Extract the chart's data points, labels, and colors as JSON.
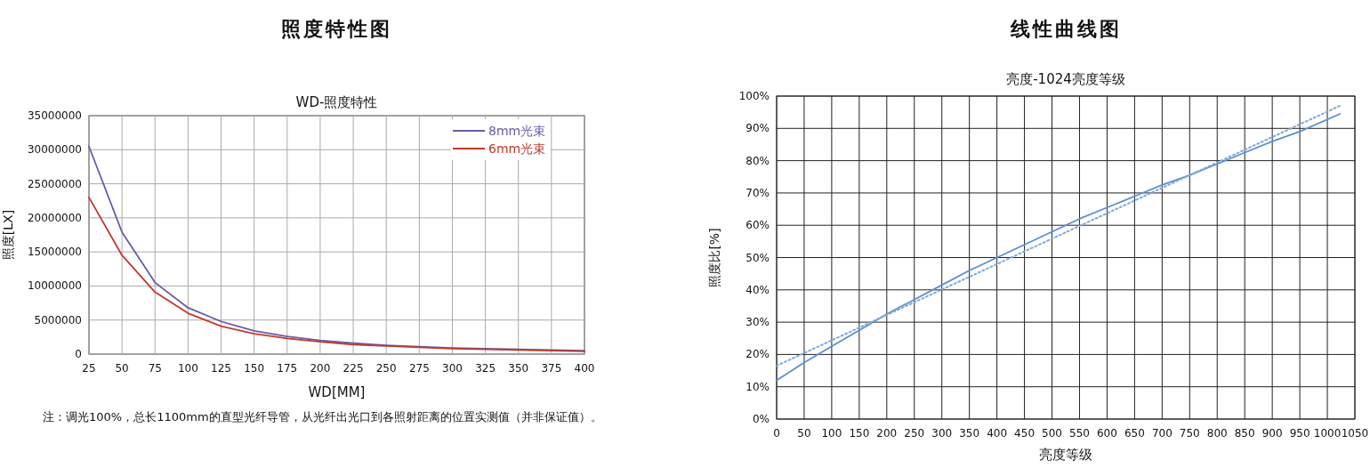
{
  "chart_data": [
    {
      "type": "line",
      "title": "照度特性图",
      "subtitle": "WD-照度特性",
      "xlabel": "WD[MM]",
      "ylabel": "照度[LX]",
      "x": [
        25,
        50,
        75,
        100,
        125,
        150,
        175,
        200,
        225,
        250,
        275,
        300,
        325,
        350,
        375,
        400
      ],
      "series": [
        {
          "name": "8mm光束",
          "color": "#6a5aa8",
          "values": [
            30500000,
            17900000,
            10500000,
            6800000,
            4800000,
            3400000,
            2600000,
            2000000,
            1600000,
            1300000,
            1100000,
            900000,
            800000,
            700000,
            600000,
            500000
          ]
        },
        {
          "name": "6mm光束",
          "color": "#c0392b",
          "values": [
            23000000,
            14500000,
            9100000,
            6000000,
            4100000,
            3000000,
            2300000,
            1800000,
            1400000,
            1200000,
            1000000,
            800000,
            700000,
            600000,
            500000,
            400000
          ]
        }
      ],
      "xlim": [
        25,
        400
      ],
      "xticks": [
        25,
        50,
        75,
        100,
        125,
        150,
        175,
        200,
        225,
        250,
        275,
        300,
        325,
        350,
        375,
        400
      ],
      "ylim": [
        0,
        35000000
      ],
      "yticks": [
        0,
        5000000,
        10000000,
        15000000,
        20000000,
        25000000,
        30000000,
        35000000
      ],
      "grid": true,
      "legend": "top right",
      "line_style": "solid",
      "annotations": [
        "注：调光100%，总长1100mm的直型光纤导管，从光纤出光口到各照射距离的位置实测值（并非保证值）。"
      ]
    },
    {
      "type": "line",
      "title": "线性曲线图",
      "subtitle": "亮度-1024亮度等级",
      "xlabel": "亮度等级",
      "ylabel": "照度比[%]",
      "series": [
        {
          "color": "#5b8fcf",
          "line_style": "solid",
          "x": [
            0,
            50,
            100,
            150,
            200,
            250,
            300,
            350,
            400,
            450,
            500,
            550,
            600,
            650,
            700,
            750,
            800,
            850,
            900,
            950,
            1023
          ],
          "values": [
            12,
            17.5,
            22.5,
            27.5,
            32.5,
            37,
            41.5,
            46,
            50,
            54,
            58,
            62,
            65.5,
            69,
            72.5,
            75.5,
            79,
            82.5,
            86,
            89,
            94.5
          ]
        },
        {
          "type": "line",
          "color": "#7fa9d6",
          "line_style": "dotted",
          "x": [
            0,
            1023
          ],
          "values": [
            16.5,
            97
          ]
        }
      ],
      "xlim": [
        0,
        1050
      ],
      "xticks": [
        0,
        50,
        100,
        150,
        200,
        250,
        300,
        350,
        400,
        450,
        500,
        550,
        600,
        650,
        700,
        750,
        800,
        850,
        900,
        950,
        1000,
        1050
      ],
      "ylim": [
        0,
        100
      ],
      "yticks": [
        {
          "value": 0,
          "label": "0%"
        },
        {
          "value": 10,
          "label": "10%"
        },
        {
          "value": 20,
          "label": "20%"
        },
        {
          "value": 30,
          "label": "30%"
        },
        {
          "value": 40,
          "label": "40%"
        },
        {
          "value": 50,
          "label": "50%"
        },
        {
          "value": 60,
          "label": "60%"
        },
        {
          "value": 70,
          "label": "70%"
        },
        {
          "value": 80,
          "label": "80%"
        },
        {
          "value": 90,
          "label": "90%"
        },
        {
          "value": 100,
          "label": "100%"
        }
      ],
      "grid": true,
      "legend": false
    }
  ]
}
